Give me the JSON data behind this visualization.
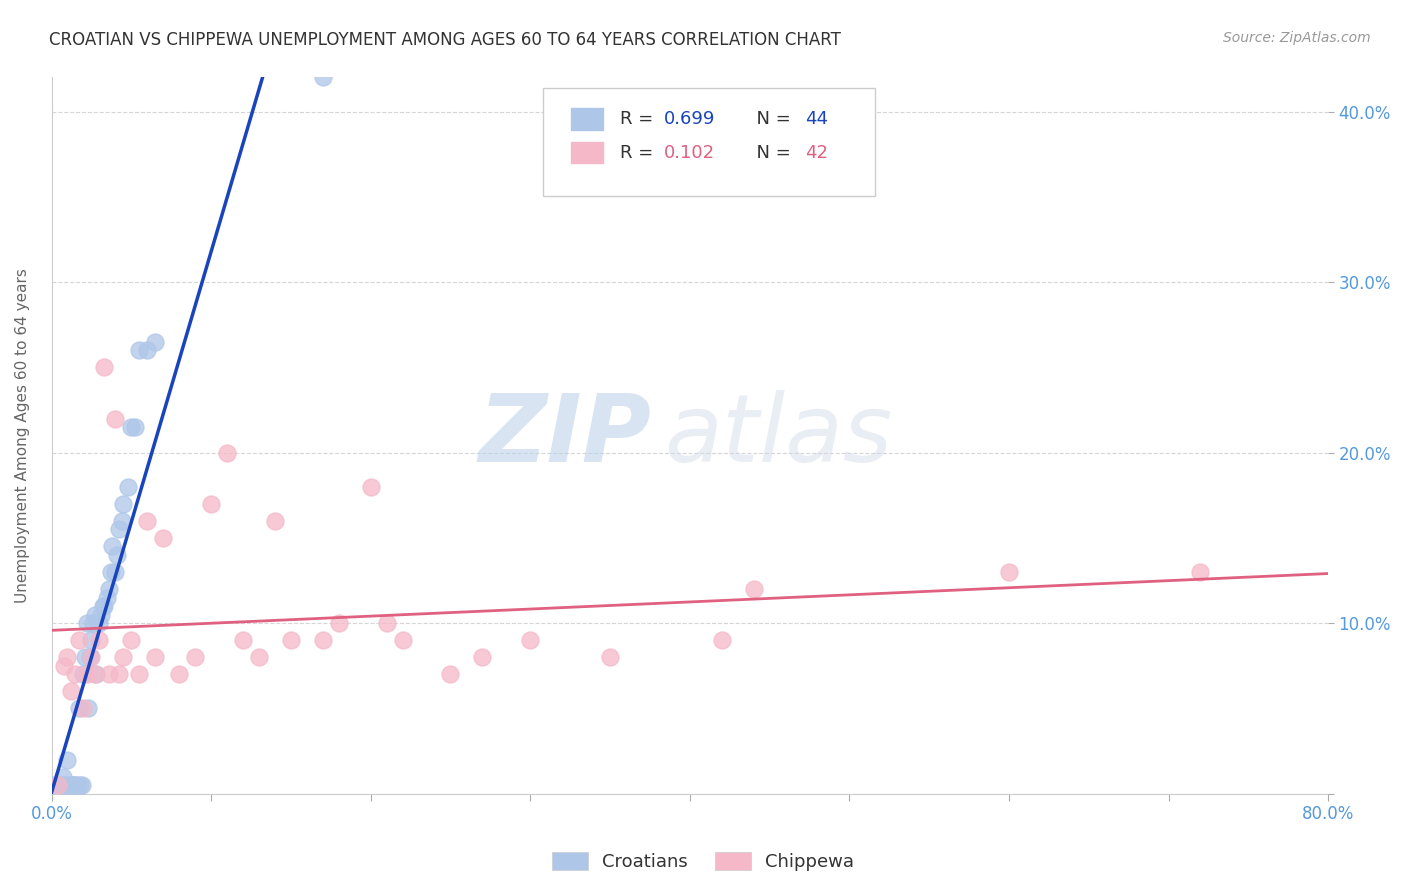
{
  "title": "CROATIAN VS CHIPPEWA UNEMPLOYMENT AMONG AGES 60 TO 64 YEARS CORRELATION CHART",
  "source": "Source: ZipAtlas.com",
  "ylabel": "Unemployment Among Ages 60 to 64 years",
  "xlim": [
    0.0,
    0.8
  ],
  "ylim": [
    0.0,
    0.42
  ],
  "xticks": [
    0.0,
    0.1,
    0.2,
    0.3,
    0.4,
    0.5,
    0.6,
    0.7,
    0.8
  ],
  "yticks": [
    0.0,
    0.1,
    0.2,
    0.3,
    0.4
  ],
  "right_yticklabels": [
    "",
    "10.0%",
    "20.0%",
    "30.0%",
    "40.0%"
  ],
  "croatian_color": "#aec6e8",
  "chippewa_color": "#f5b8c8",
  "trendline_croatian_color": "#1a44bb",
  "trendline_chippewa_color": "#e06080",
  "legend_label_croatians": "Croatians",
  "legend_label_chippewa": "Chippewa",
  "R_croatian": 0.699,
  "N_croatian": 44,
  "R_chippewa": 0.102,
  "N_chippewa": 42,
  "watermark_zip": "ZIP",
  "watermark_atlas": "atlas",
  "croatian_x": [
    0.001,
    0.005,
    0.007,
    0.008,
    0.009,
    0.01,
    0.011,
    0.012,
    0.013,
    0.014,
    0.015,
    0.016,
    0.017,
    0.018,
    0.019,
    0.02,
    0.021,
    0.022,
    0.023,
    0.024,
    0.025,
    0.026,
    0.027,
    0.028,
    0.03,
    0.031,
    0.032,
    0.033,
    0.035,
    0.036,
    0.037,
    0.038,
    0.04,
    0.041,
    0.042,
    0.044,
    0.045,
    0.048,
    0.05,
    0.052,
    0.055,
    0.06,
    0.065,
    0.17
  ],
  "croatian_y": [
    0.005,
    0.005,
    0.01,
    0.005,
    0.005,
    0.02,
    0.005,
    0.005,
    0.005,
    0.005,
    0.005,
    0.005,
    0.05,
    0.005,
    0.005,
    0.07,
    0.08,
    0.1,
    0.05,
    0.08,
    0.09,
    0.1,
    0.105,
    0.07,
    0.1,
    0.105,
    0.11,
    0.11,
    0.115,
    0.12,
    0.13,
    0.145,
    0.13,
    0.14,
    0.155,
    0.16,
    0.17,
    0.18,
    0.215,
    0.215,
    0.26,
    0.26,
    0.265,
    0.42
  ],
  "chippewa_x": [
    0.004,
    0.008,
    0.01,
    0.012,
    0.015,
    0.017,
    0.02,
    0.022,
    0.025,
    0.027,
    0.03,
    0.033,
    0.036,
    0.04,
    0.042,
    0.045,
    0.05,
    0.055,
    0.06,
    0.065,
    0.07,
    0.08,
    0.09,
    0.1,
    0.11,
    0.12,
    0.13,
    0.14,
    0.15,
    0.17,
    0.18,
    0.2,
    0.21,
    0.22,
    0.25,
    0.27,
    0.3,
    0.35,
    0.42,
    0.44,
    0.6,
    0.72
  ],
  "chippewa_y": [
    0.005,
    0.075,
    0.08,
    0.06,
    0.07,
    0.09,
    0.05,
    0.07,
    0.08,
    0.07,
    0.09,
    0.25,
    0.07,
    0.22,
    0.07,
    0.08,
    0.09,
    0.07,
    0.16,
    0.08,
    0.15,
    0.07,
    0.08,
    0.17,
    0.2,
    0.09,
    0.08,
    0.16,
    0.09,
    0.09,
    0.1,
    0.18,
    0.1,
    0.09,
    0.07,
    0.08,
    0.09,
    0.08,
    0.09,
    0.12,
    0.13,
    0.13
  ],
  "background_color": "#ffffff",
  "grid_color": "#cccccc",
  "title_color": "#333333",
  "tick_color": "#5599dd",
  "ylabel_color": "#666666",
  "legend_r_color": "#333333"
}
